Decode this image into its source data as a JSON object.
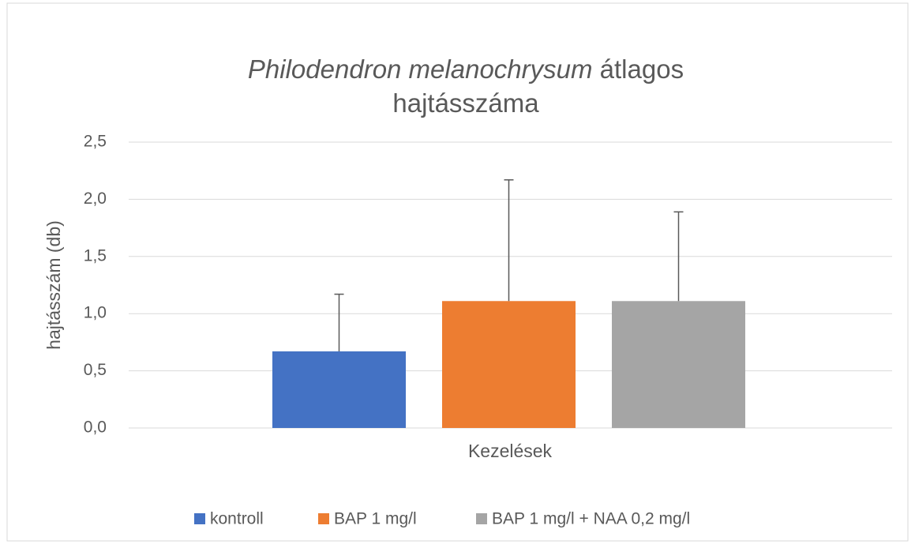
{
  "chart_data": {
    "type": "bar",
    "title": [
      "Philodendron melanochrysum",
      "átlagos",
      "hajtásszáma"
    ],
    "title_italic": [
      true,
      false,
      false
    ],
    "y_label": "hajtásszám (db)",
    "x_label": "Kezelések",
    "categories": [
      null
    ],
    "series": [
      {
        "name": "kontroll",
        "color": "#4472c4",
        "values": [
          0.67
        ],
        "errors": [
          0.5
        ]
      },
      {
        "name": "BAP 1 mg/l",
        "color": "#ed7d31",
        "values": [
          1.11
        ],
        "errors": [
          1.06
        ]
      },
      {
        "name": "BAP 1 mg/l + NAA 0,2 mg/l",
        "color": "#a5a5a5",
        "values": [
          1.11
        ],
        "errors": [
          0.78
        ]
      }
    ],
    "ylim": [
      0,
      2.5
    ],
    "yticks": [
      {
        "value": 0,
        "label": "0,0"
      },
      {
        "value": 0.5,
        "label": "0,5"
      },
      {
        "value": 1,
        "label": "1,0"
      },
      {
        "value": 1.5,
        "label": "1,5"
      },
      {
        "value": 2,
        "label": "2,0"
      },
      {
        "value": 2.5,
        "label": "2,5"
      }
    ],
    "grid": true,
    "legend": "bottom"
  }
}
